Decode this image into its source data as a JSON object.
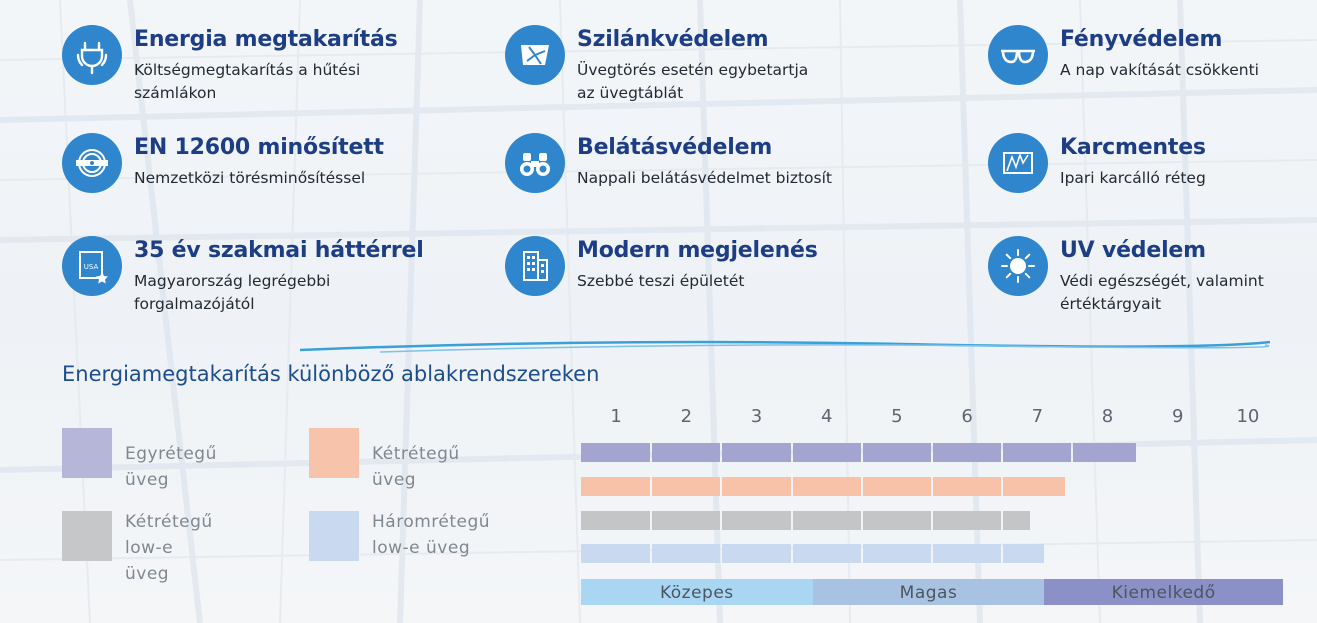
{
  "features": [
    {
      "title": "Energia megtakarítás",
      "desc": "Költségmegtakarítás a hűtési\nszámlákon",
      "icon": "power-plug-icon"
    },
    {
      "title": "Szilánkvédelem",
      "desc": "Üvegtörés esetén egybetartja\naz üvegtáblát",
      "icon": "shattered-glass-icon"
    },
    {
      "title": "Fényvédelem",
      "desc": "A nap vakítását csökkenti",
      "icon": "glasses-icon"
    },
    {
      "title": "EN 12600 minősített",
      "desc": "Nemzetközi törésminősítéssel",
      "icon": "quality-seal-icon"
    },
    {
      "title": "Belátásvédelem",
      "desc": "Nappali belátásvédelmet biztosít",
      "icon": "binoculars-icon"
    },
    {
      "title": "Karcmentes",
      "desc": "Ipari karcálló réteg",
      "icon": "scratch-icon"
    },
    {
      "title": "35 év szakmai háttérrel",
      "desc": "Magyarország legrégebbi\nforgalmazójától",
      "icon": "usa-certificate-icon"
    },
    {
      "title": "Modern megjelenés",
      "desc": "Szebbé teszi épületét",
      "icon": "building-icon"
    },
    {
      "title": "UV védelem",
      "desc": "Védi egészségét, valamint\nértéktárgyait",
      "icon": "sun-icon"
    }
  ],
  "section": {
    "title": "Energiamegtakarítás különböző ablakrendszereken"
  },
  "chart_data": {
    "type": "bar",
    "orientation": "horizontal",
    "x_ticks": [
      "1",
      "2",
      "3",
      "4",
      "5",
      "6",
      "7",
      "8",
      "9",
      "10"
    ],
    "xlim": [
      0.5,
      10.5
    ],
    "series": [
      {
        "name": "Egyrétegű üveg",
        "value": 8.4,
        "color": "#a3a4cf"
      },
      {
        "name": "Kétrétegű üveg",
        "value": 7.4,
        "color": "#f8c2a8"
      },
      {
        "name": "Kétrétegű\nlow-e üveg",
        "value": 6.9,
        "color": "#c4c5c7"
      },
      {
        "name": "Háromrétegű\nlow-e üveg",
        "value": 7.1,
        "color": "#c9daf0"
      }
    ],
    "levels": [
      {
        "label": "Közepes",
        "from": 0.5,
        "to": 3.8,
        "color": "#a9d6f3"
      },
      {
        "label": "Magas",
        "from": 3.8,
        "to": 7.1,
        "color": "#a8c3e2"
      },
      {
        "label": "Kiemelkedő",
        "from": 7.1,
        "to": 10.5,
        "color": "#8b90c6"
      }
    ]
  }
}
